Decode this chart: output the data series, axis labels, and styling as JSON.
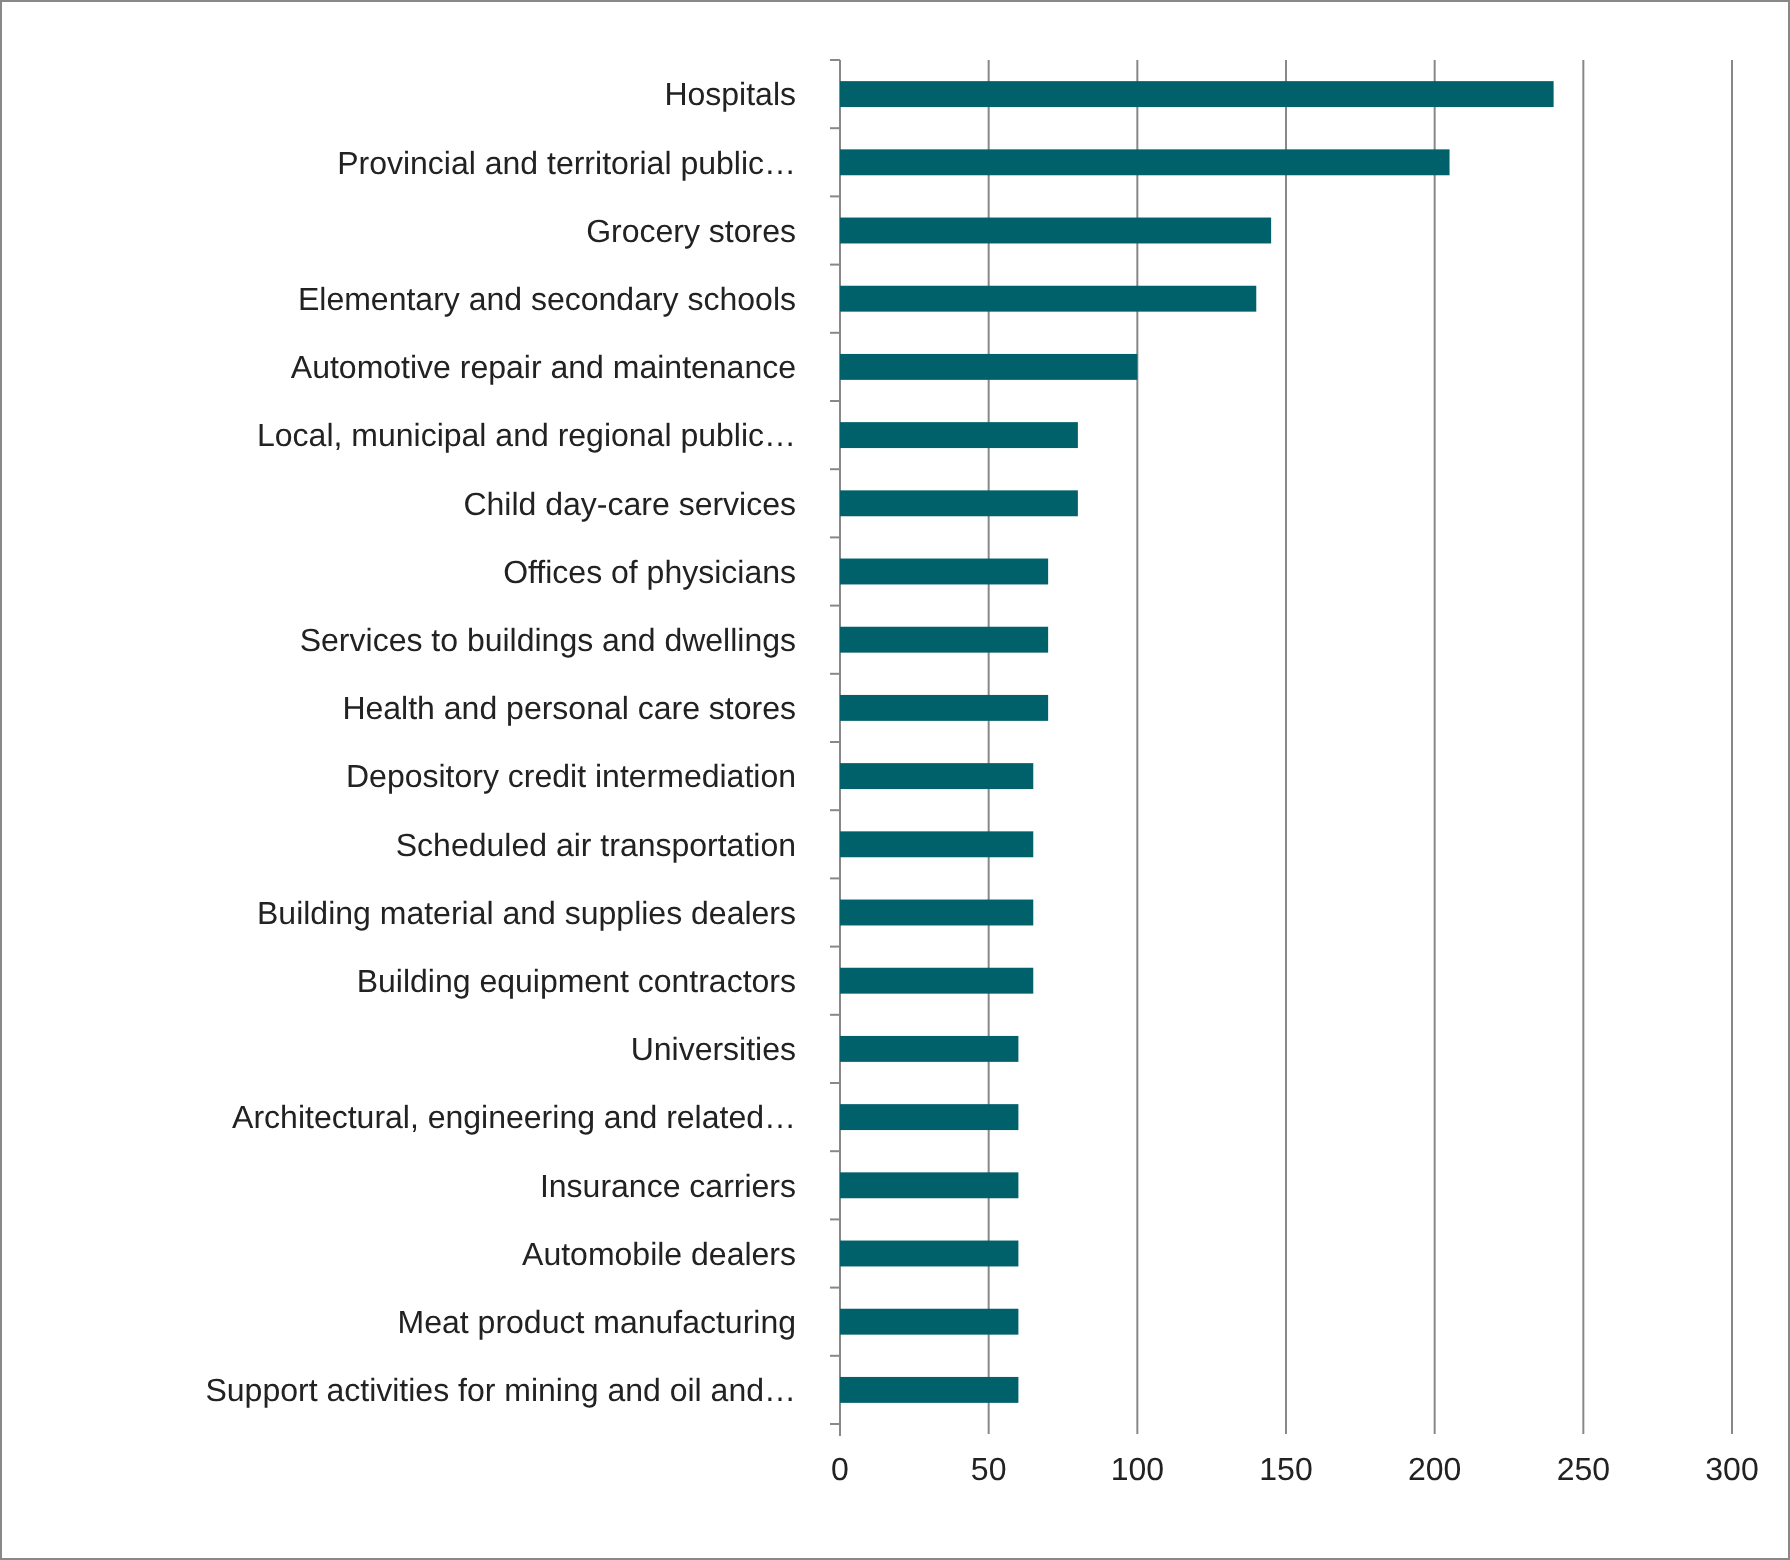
{
  "chart_data": {
    "type": "bar",
    "orientation": "horizontal",
    "categories": [
      "Hospitals",
      "Provincial and territorial public…",
      "Grocery stores",
      "Elementary and secondary schools",
      "Automotive repair and maintenance",
      "Local, municipal and regional public…",
      "Child day-care services",
      "Offices of physicians",
      "Services to buildings and dwellings",
      "Health and personal care stores",
      "Depository credit intermediation",
      "Scheduled air transportation",
      "Building material and supplies dealers",
      "Building equipment contractors",
      "Universities",
      "Architectural, engineering and related…",
      "Insurance carriers",
      "Automobile dealers",
      "Meat product manufacturing",
      "Support activities for mining and oil and…"
    ],
    "values": [
      240,
      205,
      145,
      140,
      100,
      80,
      80,
      70,
      70,
      70,
      65,
      65,
      65,
      65,
      60,
      60,
      60,
      60,
      60,
      60
    ],
    "color": "#00616b",
    "xlim": [
      0,
      300
    ],
    "xticks": [
      0,
      50,
      100,
      150,
      200,
      250,
      300
    ],
    "grid": "x"
  }
}
